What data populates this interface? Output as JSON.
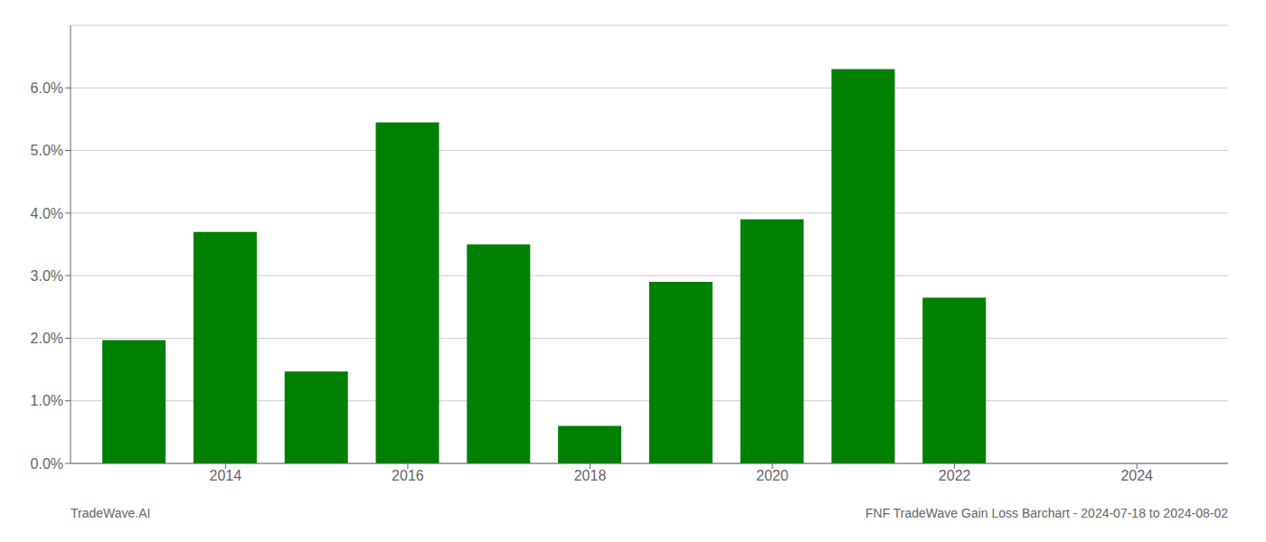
{
  "chart_data": {
    "type": "bar",
    "title": "FNF TradeWave Gain Loss Barchart - 2024-07-18 to 2024-08-02",
    "annotations": [
      "TradeWave.AI"
    ],
    "x": [
      2013,
      2014,
      2015,
      2016,
      2017,
      2018,
      2019,
      2020,
      2021,
      2022,
      2023
    ],
    "values": [
      0.0197,
      0.037,
      0.0147,
      0.0545,
      0.035,
      0.006,
      0.029,
      0.039,
      0.063,
      0.0265,
      0.0
    ],
    "color": "#008000",
    "xlim": [
      2012.3,
      2025.0
    ],
    "xticks": [
      2014,
      2016,
      2018,
      2020,
      2022,
      2024
    ],
    "ylim": [
      0.0,
      0.07
    ],
    "yticks": [
      {
        "value": 0.0,
        "label": "0.0%"
      },
      {
        "value": 0.01,
        "label": "1.0%"
      },
      {
        "value": 0.02,
        "label": "2.0%"
      },
      {
        "value": 0.03,
        "label": "3.0%"
      },
      {
        "value": 0.04,
        "label": "4.0%"
      },
      {
        "value": 0.05,
        "label": "5.0%"
      },
      {
        "value": 0.06,
        "label": "6.0%"
      }
    ],
    "grid": true
  }
}
